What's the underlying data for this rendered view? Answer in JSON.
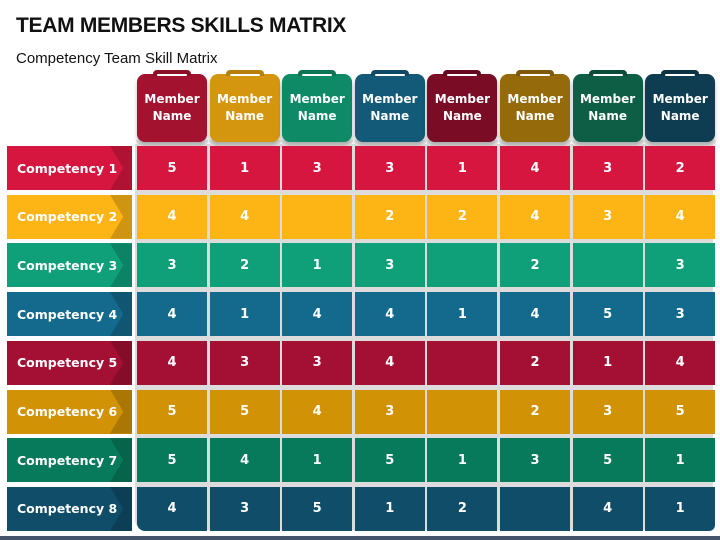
{
  "header": {
    "title": "TEAM MEMBERS SKILLS MATRIX",
    "subtitle": "Competency Team Skill Matrix"
  },
  "columns": [
    {
      "label": "Member Name",
      "color": "#a3122f",
      "tab": "#8c0f28"
    },
    {
      "label": "Member Name",
      "color": "#d4960f",
      "tab": "#b57f0a"
    },
    {
      "label": "Member Name",
      "color": "#0e8a66",
      "tab": "#0b7455"
    },
    {
      "label": "Member Name",
      "color": "#125a78",
      "tab": "#0e4a63"
    },
    {
      "label": "Member Name",
      "color": "#7a0c26",
      "tab": "#640920"
    },
    {
      "label": "Member Name",
      "color": "#946a0a",
      "tab": "#7d5908"
    },
    {
      "label": "Member Name",
      "color": "#0d5e44",
      "tab": "#0a4d37"
    },
    {
      "label": "Member Name",
      "color": "#0e3d52",
      "tab": "#0b3243"
    }
  ],
  "rows": [
    {
      "label": "Competency 1",
      "color": "#d6163f",
      "values": [
        "5",
        "1",
        "3",
        "3",
        "1",
        "4",
        "3",
        "2"
      ]
    },
    {
      "label": "Competency 2",
      "color": "#fdb515",
      "values": [
        "4",
        "4",
        "",
        "2",
        "2",
        "4",
        "3",
        "4"
      ]
    },
    {
      "label": "Competency 3",
      "color": "#0fa07a",
      "values": [
        "3",
        "2",
        "1",
        "3",
        "",
        "2",
        "",
        "3"
      ]
    },
    {
      "label": "Competency 4",
      "color": "#146a8c",
      "values": [
        "4",
        "1",
        "4",
        "4",
        "1",
        "4",
        "5",
        "3"
      ]
    },
    {
      "label": "Competency 5",
      "color": "#a31034",
      "values": [
        "4",
        "3",
        "3",
        "4",
        "",
        "2",
        "1",
        "4"
      ]
    },
    {
      "label": "Competency 6",
      "color": "#d19206",
      "values": [
        "5",
        "5",
        "4",
        "3",
        "",
        "2",
        "3",
        "5"
      ]
    },
    {
      "label": "Competency 7",
      "color": "#087a5c",
      "values": [
        "5",
        "4",
        "1",
        "5",
        "1",
        "3",
        "5",
        "1"
      ]
    },
    {
      "label": "Competency 8",
      "color": "#0f4d68",
      "values": [
        "4",
        "3",
        "5",
        "1",
        "2",
        "",
        "4",
        "1"
      ]
    }
  ],
  "chart_data": {
    "type": "table",
    "title": "TEAM MEMBERS SKILLS MATRIX",
    "subtitle": "Competency Team Skill Matrix",
    "columns": [
      "Member Name",
      "Member Name",
      "Member Name",
      "Member Name",
      "Member Name",
      "Member Name",
      "Member Name",
      "Member Name"
    ],
    "row_labels": [
      "Competency 1",
      "Competency 2",
      "Competency 3",
      "Competency 4",
      "Competency 5",
      "Competency 6",
      "Competency 7",
      "Competency 8"
    ],
    "values": [
      [
        5,
        1,
        3,
        3,
        1,
        4,
        3,
        2
      ],
      [
        4,
        4,
        null,
        2,
        2,
        4,
        3,
        4
      ],
      [
        3,
        2,
        1,
        3,
        null,
        2,
        null,
        3
      ],
      [
        4,
        1,
        4,
        4,
        1,
        4,
        5,
        3
      ],
      [
        4,
        3,
        3,
        4,
        null,
        2,
        1,
        4
      ],
      [
        5,
        5,
        4,
        3,
        null,
        2,
        3,
        5
      ],
      [
        5,
        4,
        1,
        5,
        1,
        3,
        5,
        1
      ],
      [
        4,
        3,
        5,
        1,
        2,
        null,
        4,
        1
      ]
    ]
  }
}
